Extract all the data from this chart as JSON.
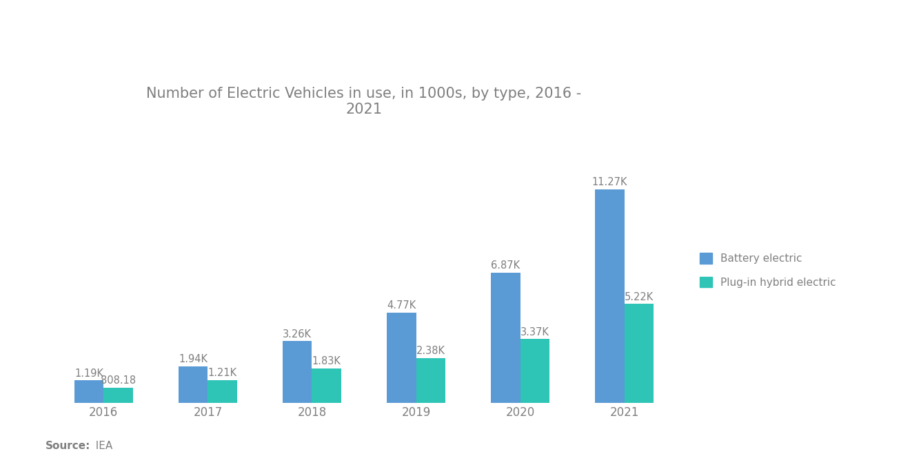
{
  "title": "Number of Electric Vehicles in use, in 1000s, by type, 2016 -\n2021",
  "years": [
    "2016",
    "2017",
    "2018",
    "2019",
    "2020",
    "2021"
  ],
  "battery_electric": [
    1190,
    1940,
    3260,
    4770,
    6870,
    11270
  ],
  "plugin_hybrid": [
    808.18,
    1210,
    1830,
    2380,
    3370,
    5220
  ],
  "battery_labels": [
    "1.19K",
    "1.94K",
    "3.26K",
    "4.77K",
    "6.87K",
    "11.27K"
  ],
  "plugin_labels": [
    "808.18",
    "1.21K",
    "1.83K",
    "2.38K",
    "3.37K",
    "5.22K"
  ],
  "battery_color": "#5B9BD5",
  "plugin_color": "#2EC4B6",
  "background_color": "#FFFFFF",
  "legend_battery": "Battery electric",
  "legend_plugin": "Plug-in hybrid electric",
  "source_bold": "Source:",
  "source_regular": "  IEA",
  "ylim": [
    0,
    14000
  ],
  "bar_width": 0.28,
  "title_fontsize": 15,
  "label_fontsize": 10.5,
  "tick_fontsize": 12,
  "legend_fontsize": 11,
  "source_fontsize": 11,
  "text_color": "#7F7F7F"
}
